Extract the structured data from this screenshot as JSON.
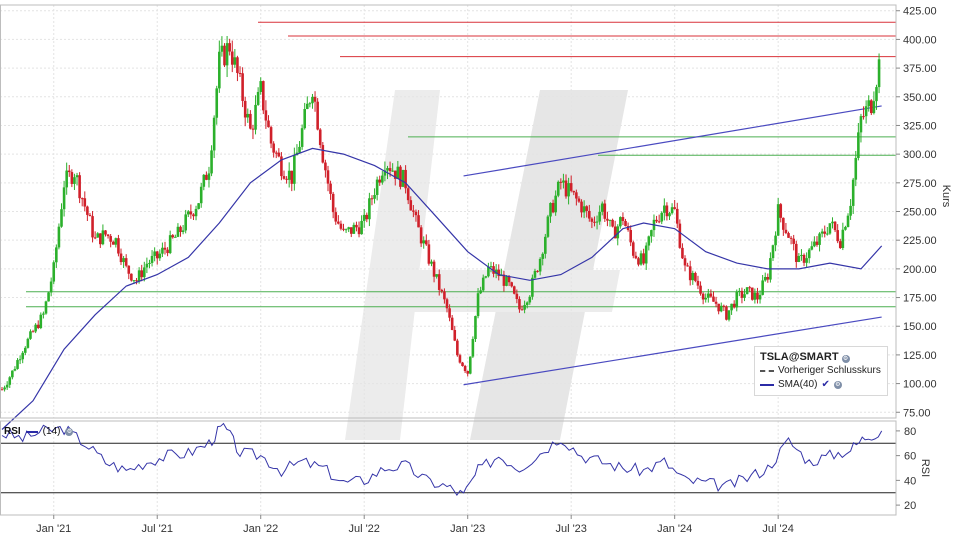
{
  "chart_data": [
    {
      "type": "candlestick",
      "symbol": "TSLA@SMART",
      "ylabel": "Kurs",
      "ylim": [
        70,
        430
      ],
      "yticks": [
        "425.00",
        "400.00",
        "375.00",
        "350.00",
        "325.00",
        "300.00",
        "275.00",
        "250.00",
        "225.00",
        "200.00",
        "175.00",
        "150.00",
        "125.00",
        "100.00",
        "75.00"
      ],
      "xticks": [
        "Jan '21",
        "Jul '21",
        "Jan '22",
        "Jul '22",
        "Jan '23",
        "Jul '23",
        "Jan '24",
        "Jul '24"
      ],
      "legend": {
        "title": "TSLA@SMART",
        "items": [
          "Vorheriger Schlusskurs",
          "SMA(40)"
        ]
      },
      "candles_weekly_close": [
        [
          2020.75,
          95
        ],
        [
          2020.8,
          110
        ],
        [
          2020.85,
          130
        ],
        [
          2020.9,
          145
        ],
        [
          2020.95,
          160
        ],
        [
          2021.0,
          200
        ],
        [
          2021.05,
          275
        ],
        [
          2021.1,
          285
        ],
        [
          2021.15,
          255
        ],
        [
          2021.2,
          225
        ],
        [
          2021.25,
          230
        ],
        [
          2021.3,
          225
        ],
        [
          2021.35,
          200
        ],
        [
          2021.4,
          190
        ],
        [
          2021.45,
          205
        ],
        [
          2021.5,
          210
        ],
        [
          2021.55,
          220
        ],
        [
          2021.6,
          230
        ],
        [
          2021.65,
          245
        ],
        [
          2021.7,
          260
        ],
        [
          2021.75,
          290
        ],
        [
          2021.8,
          380
        ],
        [
          2021.85,
          395
        ],
        [
          2021.9,
          360
        ],
        [
          2021.95,
          320
        ],
        [
          2022.0,
          355
        ],
        [
          2022.05,
          310
        ],
        [
          2022.1,
          290
        ],
        [
          2022.15,
          280
        ],
        [
          2022.2,
          320
        ],
        [
          2022.25,
          360
        ],
        [
          2022.3,
          300
        ],
        [
          2022.35,
          250
        ],
        [
          2022.4,
          230
        ],
        [
          2022.45,
          235
        ],
        [
          2022.5,
          240
        ],
        [
          2022.55,
          270
        ],
        [
          2022.6,
          295
        ],
        [
          2022.65,
          285
        ],
        [
          2022.7,
          275
        ],
        [
          2022.75,
          240
        ],
        [
          2022.8,
          215
        ],
        [
          2022.85,
          190
        ],
        [
          2022.9,
          165
        ],
        [
          2022.95,
          125
        ],
        [
          2023.0,
          110
        ],
        [
          2023.05,
          175
        ],
        [
          2023.1,
          200
        ],
        [
          2023.15,
          195
        ],
        [
          2023.2,
          185
        ],
        [
          2023.25,
          165
        ],
        [
          2023.3,
          180
        ],
        [
          2023.35,
          210
        ],
        [
          2023.4,
          250
        ],
        [
          2023.45,
          275
        ],
        [
          2023.5,
          265
        ],
        [
          2023.55,
          255
        ],
        [
          2023.6,
          240
        ],
        [
          2023.65,
          255
        ],
        [
          2023.7,
          230
        ],
        [
          2023.75,
          245
        ],
        [
          2023.8,
          215
        ],
        [
          2023.85,
          205
        ],
        [
          2023.9,
          240
        ],
        [
          2023.95,
          255
        ],
        [
          2024.0,
          250
        ],
        [
          2024.05,
          200
        ],
        [
          2024.1,
          190
        ],
        [
          2024.15,
          175
        ],
        [
          2024.2,
          170
        ],
        [
          2024.25,
          160
        ],
        [
          2024.3,
          175
        ],
        [
          2024.35,
          180
        ],
        [
          2024.4,
          175
        ],
        [
          2024.45,
          195
        ],
        [
          2024.5,
          250
        ],
        [
          2024.55,
          230
        ],
        [
          2024.6,
          205
        ],
        [
          2024.65,
          215
        ],
        [
          2024.7,
          225
        ],
        [
          2024.75,
          240
        ],
        [
          2024.8,
          225
        ],
        [
          2024.85,
          260
        ],
        [
          2024.9,
          330
        ],
        [
          2024.95,
          345
        ],
        [
          2025.0,
          390
        ]
      ],
      "sma40": [
        [
          2020.75,
          60
        ],
        [
          2020.9,
          85
        ],
        [
          2021.05,
          130
        ],
        [
          2021.2,
          160
        ],
        [
          2021.35,
          185
        ],
        [
          2021.5,
          195
        ],
        [
          2021.65,
          210
        ],
        [
          2021.8,
          240
        ],
        [
          2021.95,
          275
        ],
        [
          2022.1,
          295
        ],
        [
          2022.25,
          305
        ],
        [
          2022.4,
          300
        ],
        [
          2022.55,
          290
        ],
        [
          2022.7,
          275
        ],
        [
          2022.85,
          245
        ],
        [
          2023.0,
          215
        ],
        [
          2023.15,
          195
        ],
        [
          2023.3,
          190
        ],
        [
          2023.45,
          195
        ],
        [
          2023.6,
          210
        ],
        [
          2023.75,
          235
        ],
        [
          2023.85,
          240
        ],
        [
          2024.0,
          235
        ],
        [
          2024.15,
          215
        ],
        [
          2024.3,
          205
        ],
        [
          2024.45,
          200
        ],
        [
          2024.6,
          200
        ],
        [
          2024.75,
          205
        ],
        [
          2024.9,
          200
        ],
        [
          2025.0,
          220
        ]
      ],
      "resistance_lines": [
        415,
        403,
        385
      ],
      "support_lines": [
        315,
        299,
        180,
        167
      ],
      "trend_channel": {
        "upper": [
          [
            2022.98,
            281
          ],
          [
            2025.0,
            342
          ]
        ],
        "lower": [
          [
            2022.98,
            99
          ],
          [
            2025.0,
            158
          ]
        ]
      }
    },
    {
      "type": "line",
      "name": "RSI",
      "period": "(14)",
      "ylabel": "RSI",
      "ylim": [
        12,
        88
      ],
      "yticks": [
        "80",
        "60",
        "40",
        "20"
      ],
      "reference_lines": [
        70,
        30
      ],
      "values": [
        [
          2020.75,
          78
        ],
        [
          2020.85,
          74
        ],
        [
          2020.95,
          80
        ],
        [
          2021.05,
          82
        ],
        [
          2021.15,
          70
        ],
        [
          2021.25,
          55
        ],
        [
          2021.35,
          48
        ],
        [
          2021.45,
          55
        ],
        [
          2021.55,
          60
        ],
        [
          2021.65,
          62
        ],
        [
          2021.75,
          70
        ],
        [
          2021.82,
          85
        ],
        [
          2021.9,
          62
        ],
        [
          2022.0,
          60
        ],
        [
          2022.1,
          48
        ],
        [
          2022.2,
          55
        ],
        [
          2022.3,
          50
        ],
        [
          2022.4,
          38
        ],
        [
          2022.5,
          40
        ],
        [
          2022.6,
          50
        ],
        [
          2022.7,
          52
        ],
        [
          2022.8,
          40
        ],
        [
          2022.9,
          35
        ],
        [
          2022.98,
          28
        ],
        [
          2023.05,
          48
        ],
        [
          2023.15,
          60
        ],
        [
          2023.25,
          50
        ],
        [
          2023.35,
          62
        ],
        [
          2023.45,
          75
        ],
        [
          2023.55,
          60
        ],
        [
          2023.65,
          55
        ],
        [
          2023.75,
          50
        ],
        [
          2023.85,
          48
        ],
        [
          2023.95,
          55
        ],
        [
          2024.05,
          40
        ],
        [
          2024.15,
          38
        ],
        [
          2024.25,
          35
        ],
        [
          2024.35,
          42
        ],
        [
          2024.45,
          50
        ],
        [
          2024.55,
          72
        ],
        [
          2024.65,
          55
        ],
        [
          2024.75,
          60
        ],
        [
          2024.85,
          65
        ],
        [
          2024.92,
          75
        ],
        [
          2025.0,
          80
        ]
      ]
    }
  ]
}
